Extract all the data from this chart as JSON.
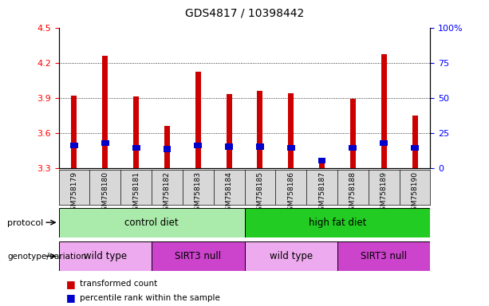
{
  "title": "GDS4817 / 10398442",
  "samples": [
    "GSM758179",
    "GSM758180",
    "GSM758181",
    "GSM758182",
    "GSM758183",
    "GSM758184",
    "GSM758185",
    "GSM758186",
    "GSM758187",
    "GSM758188",
    "GSM758189",
    "GSM758190"
  ],
  "red_values": [
    3.92,
    4.26,
    3.91,
    3.66,
    4.12,
    3.93,
    3.96,
    3.94,
    3.35,
    3.89,
    4.27,
    3.75
  ],
  "blue_heights": [
    0.05,
    0.05,
    0.05,
    0.05,
    0.05,
    0.05,
    0.05,
    0.05,
    0.05,
    0.05,
    0.05,
    0.05
  ],
  "blue_bottoms": [
    3.47,
    3.49,
    3.45,
    3.44,
    3.47,
    3.46,
    3.46,
    3.45,
    3.34,
    3.45,
    3.49,
    3.45
  ],
  "y_min": 3.3,
  "y_max": 4.5,
  "y_ticks_left": [
    3.3,
    3.6,
    3.9,
    4.2,
    4.5
  ],
  "y_ticks_right_vals": [
    0,
    25,
    50,
    75,
    100
  ],
  "y_ticks_right_labels": [
    "0",
    "25",
    "50",
    "75",
    "100%"
  ],
  "grid_lines": [
    3.6,
    3.9,
    4.2
  ],
  "protocol_labels": [
    "control diet",
    "high fat diet"
  ],
  "genotype_labels": [
    "wild type",
    "SIRT3 null",
    "wild type",
    "SIRT3 null"
  ],
  "protocol_color_light": "#aaeaaa",
  "protocol_color_dark": "#22cc22",
  "genotype_color_wildtype": "#eeaaee",
  "genotype_color_sirt3": "#cc44cc",
  "bar_color_red": "#cc0000",
  "bar_color_blue": "#0000cc",
  "bar_width": 0.18,
  "background_color": "#ffffff"
}
